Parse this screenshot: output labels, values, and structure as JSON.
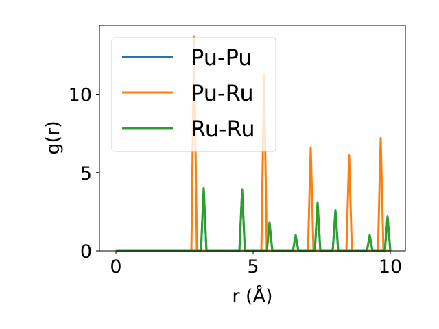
{
  "chart_data": {
    "type": "line",
    "xlabel": "r (Å)",
    "ylabel": "g(r)",
    "xlim": [
      -0.6,
      10.55
    ],
    "ylim": [
      0,
      14.4
    ],
    "xticks": [
      {
        "value": 0,
        "label": "0"
      },
      {
        "value": 5,
        "label": "5"
      },
      {
        "value": 10,
        "label": "10"
      }
    ],
    "yticks": [
      {
        "value": 0,
        "label": "0"
      },
      {
        "value": 5,
        "label": "5"
      },
      {
        "value": 10,
        "label": "10"
      }
    ],
    "grid": false,
    "legend": "top-left",
    "series": [
      {
        "name": "Pu-Pu",
        "color": "#1f77b4",
        "x": [
          0,
          2.75,
          2.85,
          2.95,
          3.1,
          3.2,
          3.3,
          4.5,
          4.6,
          4.7,
          5.3,
          5.4,
          5.5,
          5.6,
          5.7,
          6.45,
          6.55,
          6.65,
          7.0,
          7.1,
          7.2,
          7.25,
          7.35,
          7.45,
          7.9,
          8.0,
          8.1,
          8.4,
          8.5,
          8.6,
          9.15,
          9.25,
          9.35,
          9.55,
          9.65,
          9.75,
          9.8,
          9.9,
          10.0
        ],
        "y": [
          0,
          0,
          0,
          0,
          0,
          4.0,
          0,
          0,
          3.9,
          0,
          0,
          0,
          0,
          1.8,
          0,
          0,
          1.0,
          0,
          0,
          0,
          0,
          0,
          3.1,
          0,
          0,
          2.6,
          0,
          0,
          0,
          0,
          0,
          1.0,
          0,
          0,
          0,
          0,
          0,
          2.2,
          0
        ]
      },
      {
        "name": "Pu-Ru",
        "color": "#ff7f0e",
        "x": [
          0,
          2.75,
          2.85,
          2.95,
          3.1,
          3.2,
          3.3,
          4.5,
          4.6,
          4.7,
          5.3,
          5.4,
          5.5,
          5.6,
          5.7,
          6.45,
          6.55,
          6.65,
          7.0,
          7.1,
          7.2,
          7.25,
          7.35,
          7.45,
          7.9,
          8.0,
          8.1,
          8.4,
          8.5,
          8.6,
          9.15,
          9.25,
          9.35,
          9.55,
          9.65,
          9.75,
          9.8,
          9.9,
          10.0
        ],
        "y": [
          0,
          0,
          13.7,
          0,
          0,
          0,
          0,
          0,
          0,
          0,
          0,
          11.3,
          0,
          0,
          0,
          0,
          0,
          0,
          0,
          6.6,
          0,
          0,
          0,
          0,
          0,
          0,
          0,
          0,
          6.1,
          0,
          0,
          0,
          0,
          0,
          7.2,
          0,
          0,
          0,
          0
        ]
      },
      {
        "name": "Ru-Ru",
        "color": "#2ca02c",
        "x": [
          0,
          2.75,
          2.85,
          2.95,
          3.1,
          3.2,
          3.3,
          4.5,
          4.6,
          4.7,
          5.3,
          5.4,
          5.5,
          5.6,
          5.7,
          6.45,
          6.55,
          6.65,
          7.0,
          7.1,
          7.2,
          7.25,
          7.35,
          7.45,
          7.9,
          8.0,
          8.1,
          8.4,
          8.5,
          8.6,
          9.15,
          9.25,
          9.35,
          9.55,
          9.65,
          9.75,
          9.8,
          9.9,
          10.0
        ],
        "y": [
          0,
          0,
          0,
          0,
          0,
          4.0,
          0,
          0,
          3.9,
          0,
          0,
          0,
          0,
          1.8,
          0,
          0,
          1.0,
          0,
          0,
          0,
          0,
          0,
          3.1,
          0,
          0,
          2.6,
          0,
          0,
          0,
          0,
          0,
          1.0,
          0,
          0,
          0,
          0,
          0,
          2.2,
          0
        ]
      }
    ]
  }
}
